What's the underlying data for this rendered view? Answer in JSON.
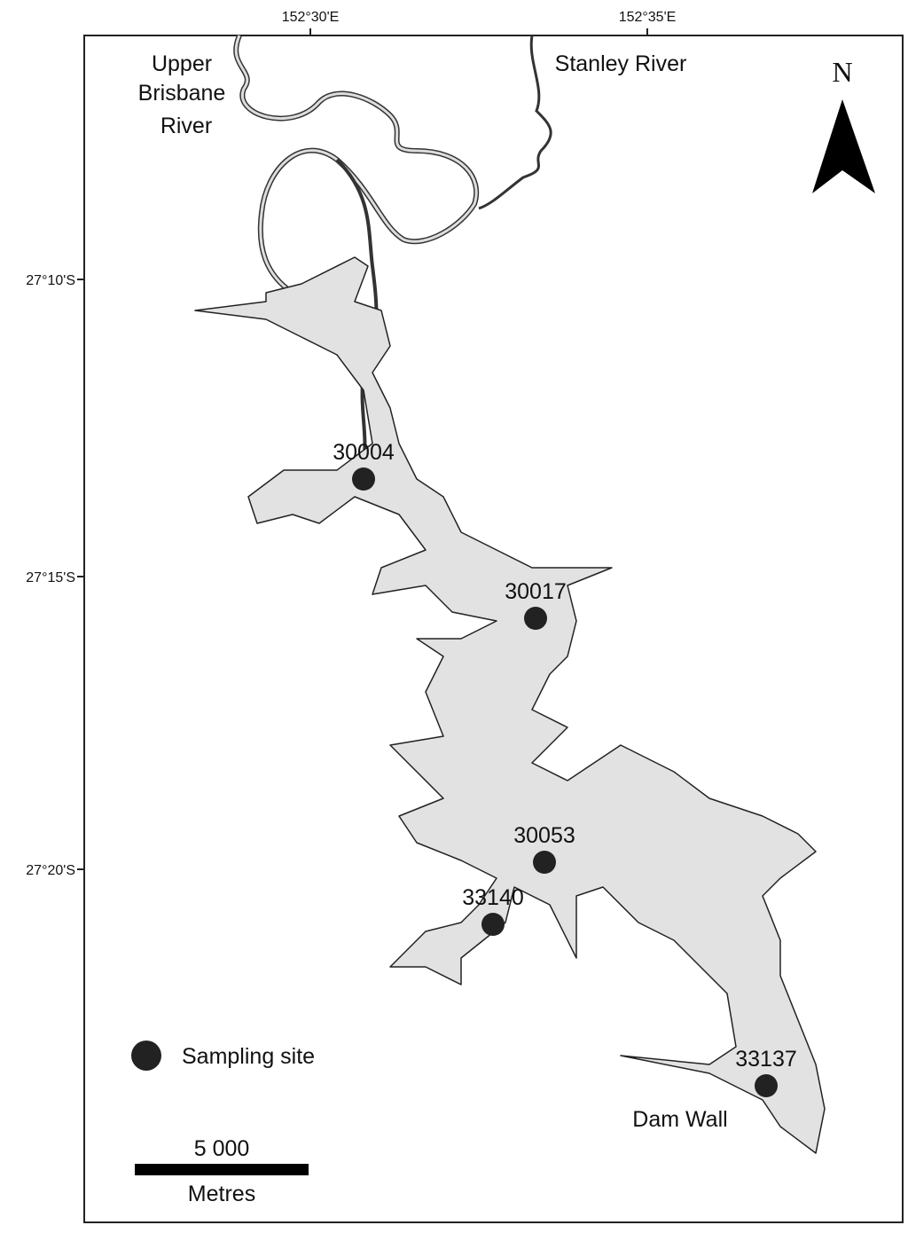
{
  "axes": {
    "x_ticks": [
      "152°30'E",
      "152°35'E"
    ],
    "y_ticks": [
      "27°10'S",
      "27°15'S",
      "27°20'S"
    ]
  },
  "rivers": [
    {
      "name_lines": [
        "Upper",
        "Brisbane",
        "River"
      ]
    },
    {
      "name_lines": [
        "Stanley River"
      ]
    }
  ],
  "north_arrow": "N",
  "sites": [
    {
      "id": "30004"
    },
    {
      "id": "30017"
    },
    {
      "id": "30053"
    },
    {
      "id": "33140"
    },
    {
      "id": "33137"
    }
  ],
  "dam_wall": "Dam Wall",
  "legend": {
    "label": "Sampling site"
  },
  "scale_bar": {
    "distance": "5 000",
    "unit": "Metres"
  }
}
